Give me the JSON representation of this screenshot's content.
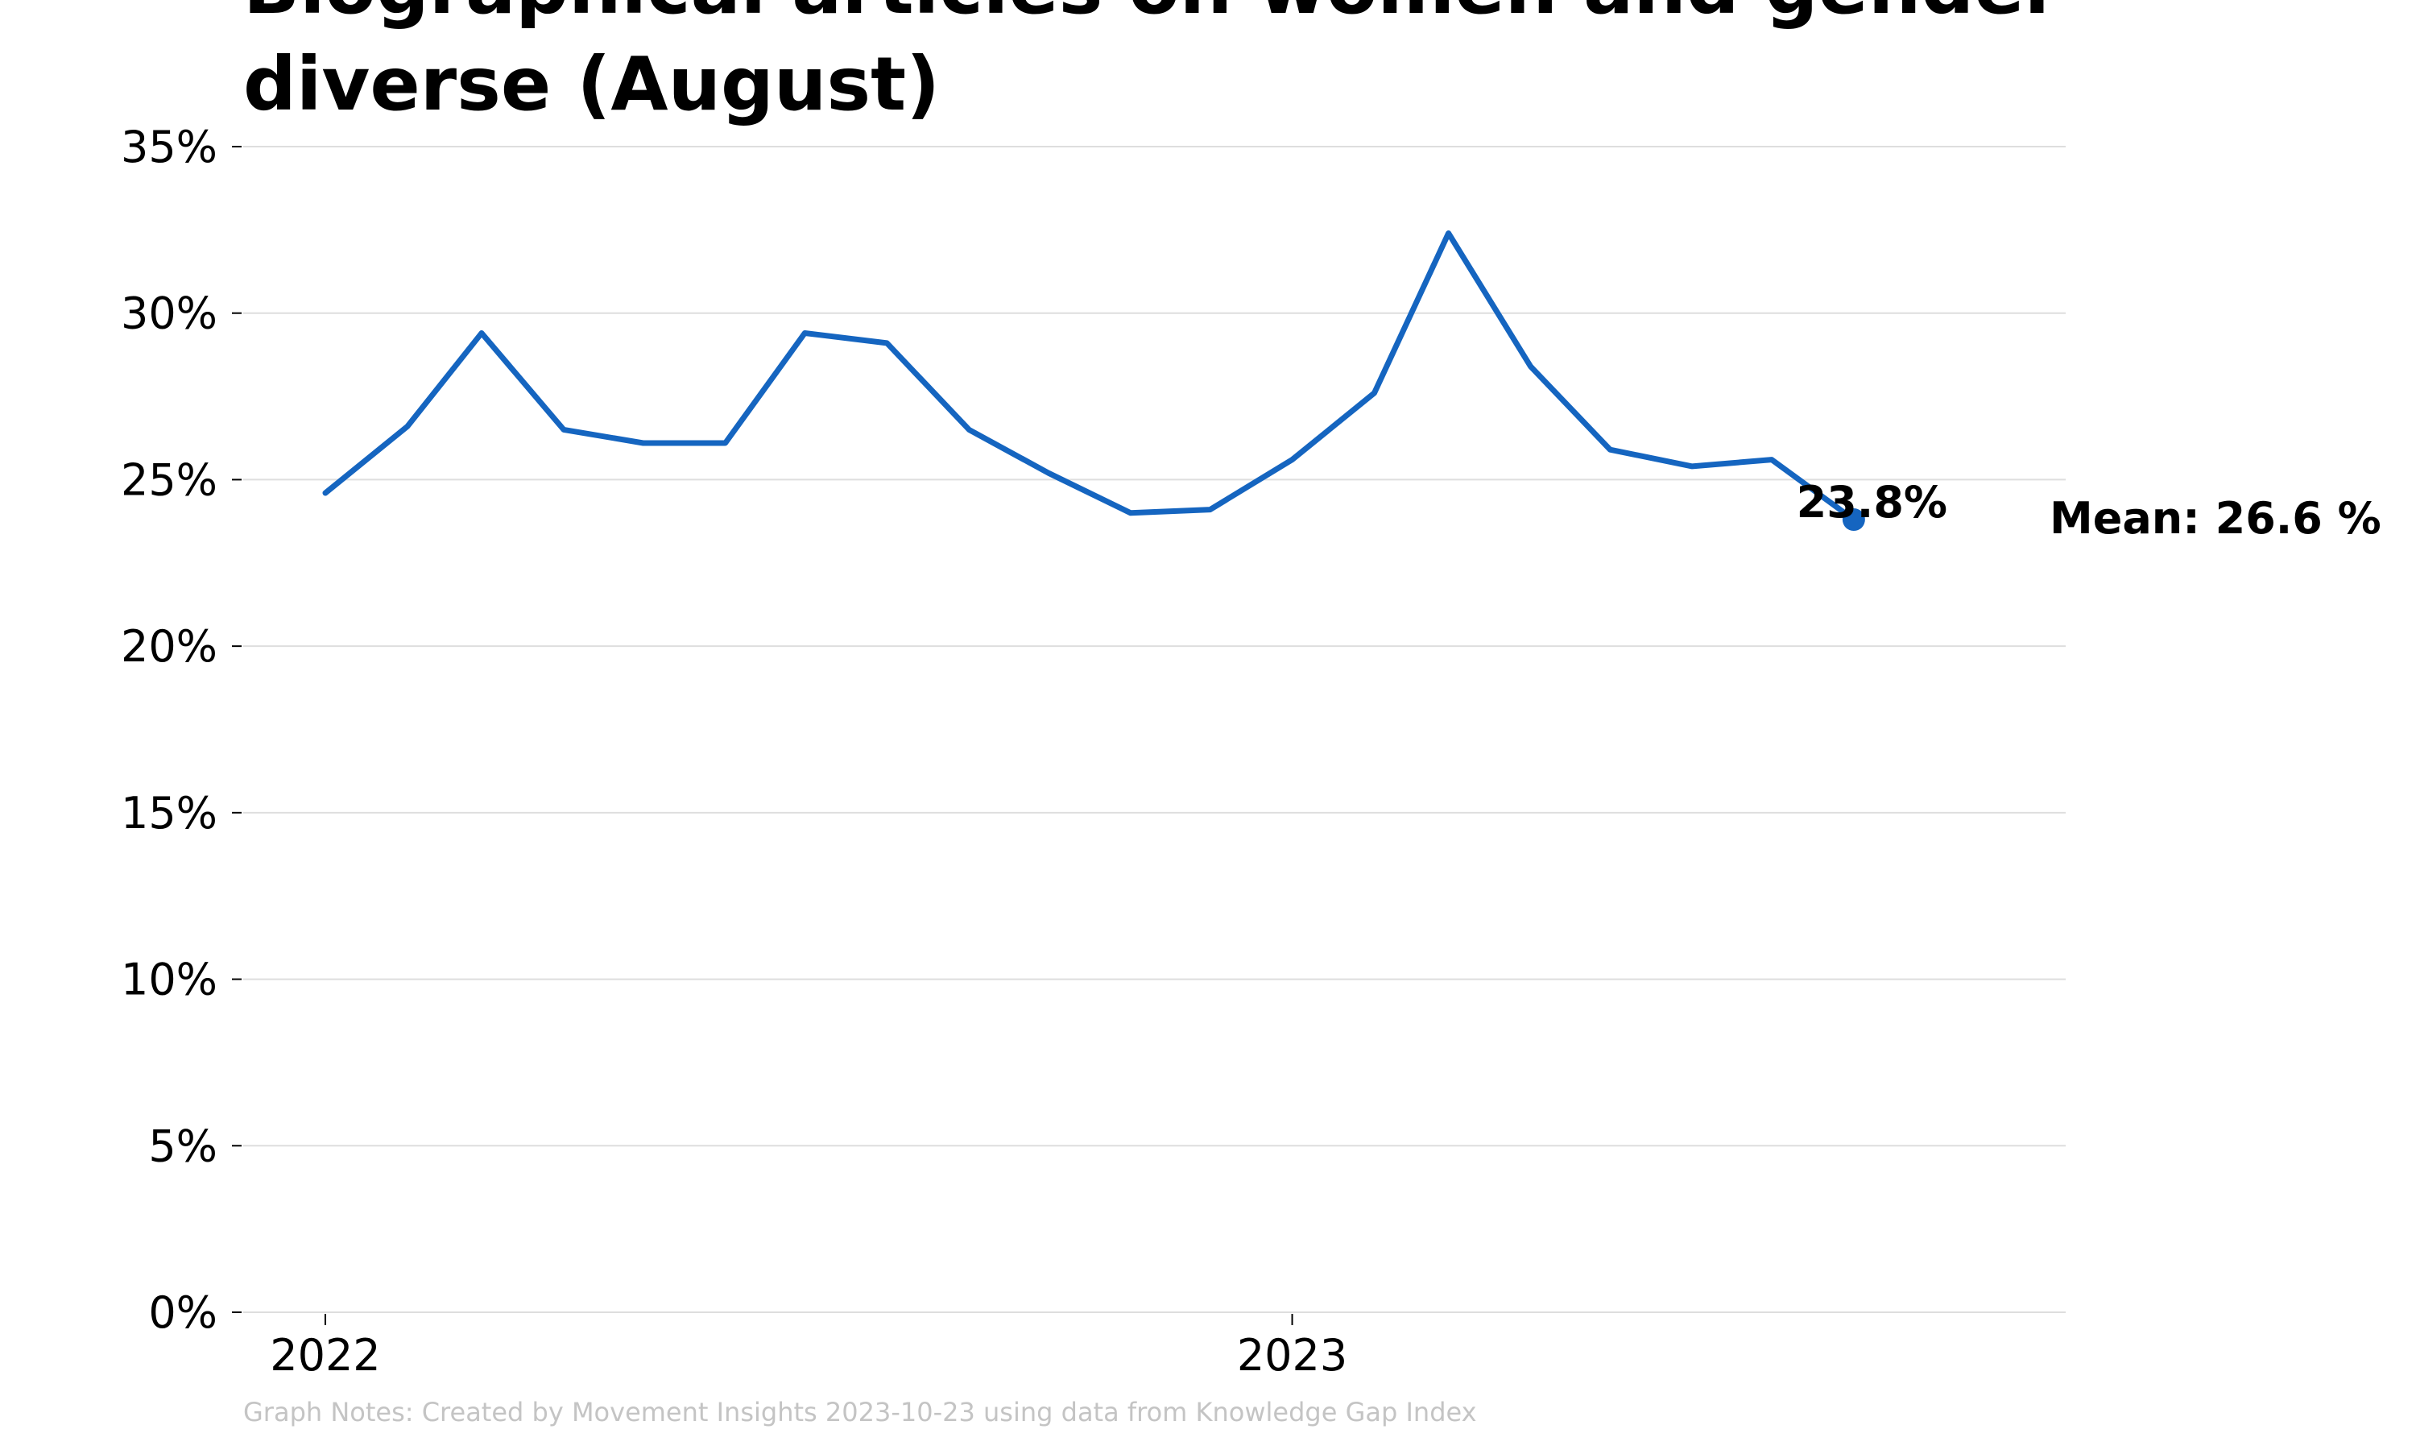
{
  "chart_data": {
    "type": "line",
    "title_lines": [
      "Biographical articles on women and gender",
      "diverse (August)"
    ],
    "y_tick_labels": [
      "0%",
      "5%",
      "10%",
      "15%",
      "20%",
      "25%",
      "30%",
      "35%"
    ],
    "y_ticks": [
      0,
      5,
      10,
      15,
      20,
      25,
      30,
      35
    ],
    "ylim": [
      0,
      35
    ],
    "x_tick_labels": [
      "2022",
      "2023"
    ],
    "x_ticks": [
      "2022-01-01",
      "2023-01-01"
    ],
    "xlim": [
      "2021-12-01",
      "2023-10-20"
    ],
    "grid": true,
    "series": [
      {
        "color": "#1565c0",
        "x": [
          "2022-01-01",
          "2022-02-01",
          "2022-03-01",
          "2022-04-01",
          "2022-05-01",
          "2022-06-01",
          "2022-07-01",
          "2022-08-01",
          "2022-09-01",
          "2022-10-01",
          "2022-11-01",
          "2022-12-01",
          "2023-01-01",
          "2023-02-01",
          "2023-03-01",
          "2023-04-01",
          "2023-05-01",
          "2023-06-01",
          "2023-07-01",
          "2023-08-01"
        ],
        "values": [
          24.6,
          26.6,
          29.4,
          26.5,
          26.1,
          26.1,
          29.4,
          29.1,
          26.5,
          25.2,
          24.0,
          24.1,
          25.6,
          27.6,
          32.4,
          28.4,
          25.9,
          25.4,
          25.6,
          23.8
        ]
      }
    ],
    "end_value_label": "23.8%",
    "mean_label": "Mean: 26.6 %",
    "note": "Graph Notes: Created by Movement Insights 2023-10-23 using data from Knowledge Gap Index"
  }
}
